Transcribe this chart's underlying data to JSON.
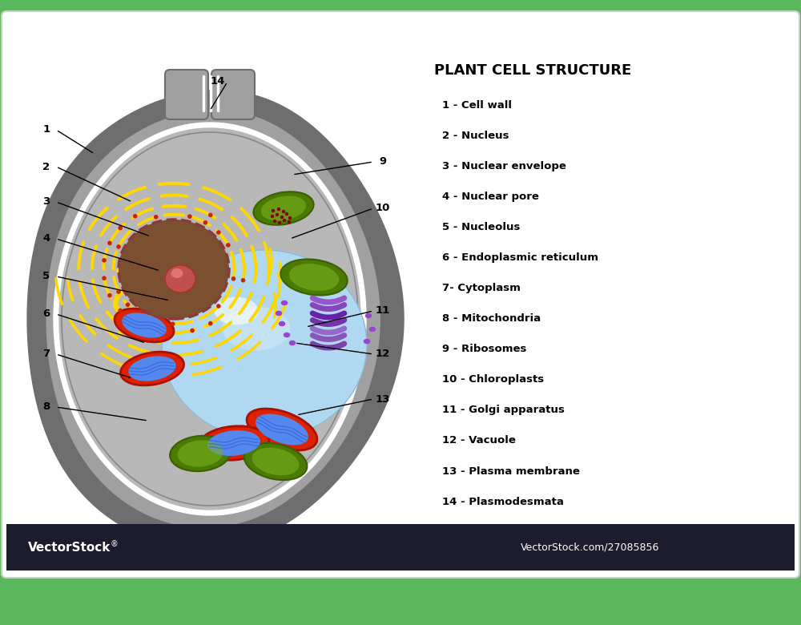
{
  "title": "PLANT CELL STRUCTURE",
  "bg_green": "#5cb85c",
  "bg_white": "#ffffff",
  "bg_dark": "#1c1c2e",
  "legend_items": [
    "1 - Cell wall",
    "2 - Nucleus",
    "3 - Nuclear envelope",
    "4 - Nuclear pore",
    "5 - Nucleolus",
    "6 - Endoplasmic reticulum",
    "7- Cytoplasm",
    "8 - Mitochondria",
    "9 - Ribosomes",
    "10 - Chloroplasts",
    "11 - Golgi apparatus",
    "12 - Vacuole",
    "13 - Plasma membrane",
    "14 - Plasmodesmata"
  ],
  "cell_wall_outer": "#6e6e6e",
  "cell_wall_mid": "#a0a0a0",
  "cell_wall_white": "#e8e8e8",
  "cytoplasm_color": "#b8b8b8",
  "nucleus_color": "#7a5030",
  "nuclear_env_color": "#8b3a3a",
  "nucleolus_color": "#c05050",
  "er_yellow": "#ffd700",
  "er_dot_red": "#cc2200",
  "vacuole_color": "#b0d8f0",
  "chloroplast_dark": "#4a7a00",
  "chloroplast_light": "#7ab020",
  "mito_outer": "#cc2200",
  "mito_inner": "#5588ee",
  "golgi_color": "#7744aa",
  "golgi_dot": "#9944cc",
  "ribosome_color": "#880000"
}
